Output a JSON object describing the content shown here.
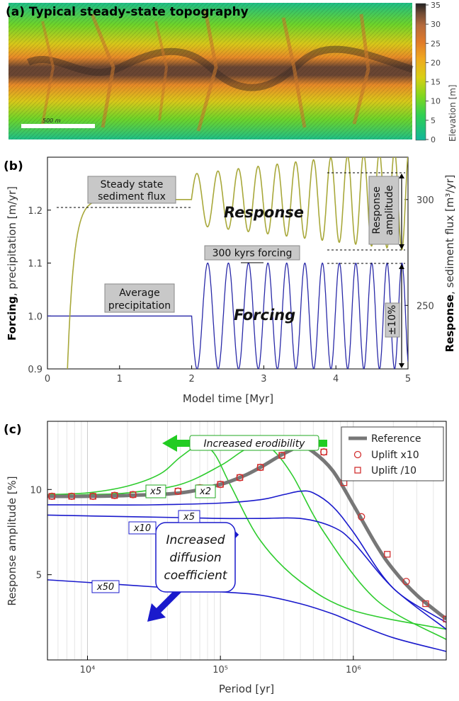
{
  "panel_a": {
    "label": "(a) Typical steady-state topography",
    "scale_bar_label": "500 m",
    "colorbar_label": "Elevation [m]",
    "colorbar_ticks": [
      "0",
      "5",
      "10",
      "15",
      "20",
      "25",
      "30",
      "35"
    ],
    "colors": [
      "#12b59a",
      "#2fcf54",
      "#7fd71f",
      "#d9cf14",
      "#f0a820",
      "#e07a2a",
      "#b56a3c",
      "#6f4a34",
      "#222222"
    ]
  },
  "panel_b": {
    "label": "(b)",
    "xlabel": "Model time [Myr]",
    "ylabel_left_bold": "Forcing",
    "ylabel_left_rest": ", precipitation [m/yr]",
    "ylabel_right_bold": "Response",
    "ylabel_right_rest": ", sediment flux [m³/yr]",
    "annotations": {
      "steady_state_line1": "Steady state",
      "steady_state_line2": "sediment flux",
      "average_line1": "Average",
      "average_line2": "precipitation",
      "response": "Response",
      "forcing": "Forcing",
      "forcing_period": "300 kyrs forcing",
      "response_amp_line1": "Response",
      "response_amp_line2": "amplitude",
      "plus_minus": "±10%"
    },
    "colors": {
      "forcing": "#2a2aa8",
      "response": "#a8a83a"
    }
  },
  "panel_c": {
    "label": "(c)",
    "xlabel": "Period [yr]",
    "ylabel": "Response amplitude [%]",
    "arrow_erodibility": "Increased erodibility",
    "diffusion_line1": "Increased",
    "diffusion_line2": "diffusion",
    "diffusion_line3": "coefficient",
    "curve_labels": {
      "g5": "x5",
      "g2": "x2",
      "b5": "x5",
      "b10": "x10",
      "b50": "x50"
    },
    "legend": {
      "reference": "Reference",
      "uplift_x10": "Uplift x10",
      "uplift_div10": "Uplift /10"
    },
    "colors": {
      "reference": "#777777",
      "marker": "#d23030",
      "green": "#2ecc2e",
      "blue": "#1a1acc"
    }
  },
  "chart_data": [
    {
      "type": "line",
      "xlabel": "Model time [Myr]",
      "ylabel": "Forcing, precipitation [m/yr]",
      "ylabel_right": "Response, sediment flux [m³/yr]",
      "xlim": [
        0,
        5
      ],
      "ylim": [
        0.9,
        1.3
      ],
      "ylim_right": [
        220,
        320
      ],
      "xticks": [
        "0",
        "1",
        "2",
        "3",
        "4",
        "5"
      ],
      "yticks": [
        "0.9",
        "1.0",
        "1.1",
        "1.2"
      ],
      "yticks_right": [
        "250",
        "300"
      ],
      "grid": false,
      "series": [
        {
          "axis": "left",
          "kind": "forcing",
          "mean": 1.0,
          "amplitude": 0.1,
          "start_time": 2.0,
          "period_start": 0.3,
          "period_end": 0.2
        },
        {
          "axis": "right",
          "kind": "response",
          "steady_state": 300,
          "spinup_start": 0.25,
          "ramp_end": 0.6,
          "oscillation_start": 2.0,
          "amplitude_start": 12,
          "amplitude_end": 24,
          "period_start": 0.3,
          "period_end": 0.2
        }
      ]
    },
    {
      "type": "line",
      "xlabel": "Period [yr]",
      "ylabel": "Response amplitude [%]",
      "xscale": "log",
      "xlim": [
        5000,
        5000000
      ],
      "ylim": [
        0,
        14
      ],
      "xticks": [
        "10⁴",
        "10⁵",
        "10⁶"
      ],
      "xtick_values": [
        10000,
        100000,
        1000000
      ],
      "yticks": [
        "5",
        "10"
      ],
      "grid": true,
      "legend": "top-right",
      "series": [
        {
          "name": "Reference",
          "style": "thick-gray",
          "x": [
            5000,
            10000,
            20000,
            50000,
            100000,
            150000,
            200000,
            300000,
            400000,
            500000,
            700000,
            1000000,
            1500000,
            2000000,
            3000000,
            5000000
          ],
          "y": [
            9.6,
            9.6,
            9.65,
            9.8,
            10.3,
            10.8,
            11.3,
            12.1,
            12.5,
            12.2,
            11.1,
            9.1,
            6.7,
            5.3,
            3.8,
            2.4
          ]
        },
        {
          "name": "Uplift x10",
          "style": "circles",
          "x": [
            5400,
            7600,
            11000,
            16000,
            22000,
            32000,
            48000,
            70000,
            100000,
            140000,
            200000,
            290000,
            420000,
            600000,
            1150000,
            2500000
          ],
          "y": [
            9.6,
            9.6,
            9.6,
            9.65,
            9.7,
            9.75,
            9.9,
            10.1,
            10.3,
            10.7,
            11.3,
            12.0,
            12.5,
            12.2,
            8.4,
            4.6
          ]
        },
        {
          "name": "Uplift /10",
          "style": "squares",
          "x": [
            5400,
            7600,
            11000,
            16000,
            22000,
            32000,
            48000,
            70000,
            100000,
            140000,
            200000,
            290000,
            420000,
            600000,
            850000,
            1800000,
            3500000,
            5000000
          ],
          "y": [
            9.6,
            9.6,
            9.6,
            9.65,
            9.7,
            9.75,
            9.9,
            10.1,
            10.3,
            10.7,
            11.3,
            12.0,
            12.5,
            12.2,
            10.4,
            6.2,
            3.3,
            2.4
          ]
        },
        {
          "style": "green",
          "x": [
            5000,
            10000,
            20000,
            35000,
            50000,
            70000,
            90000,
            120000,
            200000,
            400000,
            1000000,
            5000000
          ],
          "y": [
            9.7,
            9.8,
            10.2,
            10.9,
            11.9,
            12.6,
            12.1,
            10.2,
            7.0,
            4.6,
            2.9,
            1.8
          ]
        },
        {
          "style": "green",
          "x": [
            5000,
            10000,
            20000,
            50000,
            100000,
            150000,
            200000,
            250000,
            350000,
            600000,
            1500000,
            5000000
          ],
          "y": [
            9.6,
            9.7,
            9.8,
            10.3,
            11.4,
            12.3,
            12.6,
            12.3,
            10.8,
            7.5,
            3.5,
            1.2
          ]
        },
        {
          "style": "blue",
          "x": [
            5000,
            10000,
            30000,
            100000,
            200000,
            300000,
            400000,
            500000,
            700000,
            1000000,
            2000000,
            5000000
          ],
          "y": [
            9.1,
            9.1,
            9.1,
            9.2,
            9.4,
            9.7,
            9.9,
            9.8,
            9.0,
            7.5,
            4.2,
            2.2
          ]
        },
        {
          "style": "blue",
          "x": [
            5000,
            10000,
            50000,
            100000,
            200000,
            400000,
            700000,
            1000000,
            2000000,
            5000000
          ],
          "y": [
            8.5,
            8.45,
            8.35,
            8.3,
            8.3,
            8.3,
            7.8,
            6.9,
            4.2,
            1.8
          ]
        },
        {
          "style": "blue",
          "x": [
            5000,
            10000,
            30000,
            100000,
            200000,
            400000,
            700000,
            1000000,
            2000000,
            5000000
          ],
          "y": [
            4.7,
            4.55,
            4.3,
            4.0,
            3.8,
            3.3,
            2.7,
            2.2,
            1.3,
            0.5
          ]
        }
      ]
    }
  ]
}
